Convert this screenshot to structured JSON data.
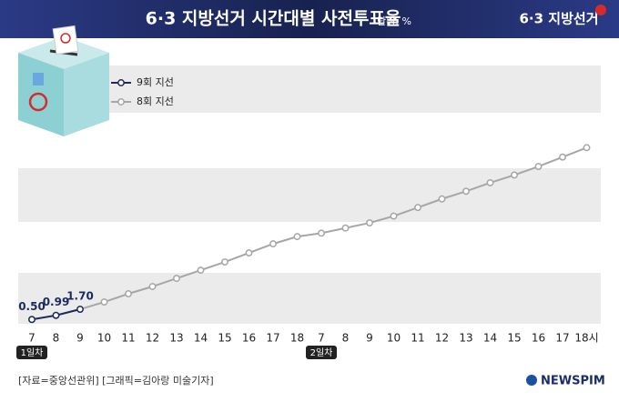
{
  "header": {
    "logo": "6·3 지방선거"
  },
  "chart_data": {
    "type": "line",
    "title": "6·3 지방선거 시간대별 사전투표율",
    "unit": "단위: %",
    "categories": [
      "7",
      "8",
      "9",
      "10",
      "11",
      "12",
      "13",
      "14",
      "15",
      "16",
      "17",
      "18",
      "7",
      "8",
      "9",
      "10",
      "11",
      "12",
      "13",
      "14",
      "15",
      "16",
      "17",
      "18시"
    ],
    "annotations": [
      "1일차",
      "2일차"
    ],
    "series": [
      {
        "name": "9회 지선",
        "color": "#1f2a5c",
        "values": [
          0.5,
          0.99,
          1.7,
          null,
          null,
          null,
          null,
          null,
          null,
          null,
          null,
          null,
          null,
          null,
          null,
          null,
          null,
          null,
          null,
          null,
          null,
          null,
          null,
          null
        ],
        "value_labels": [
          "0.50",
          "0.99",
          "1.70",
          null,
          null,
          null,
          null,
          null,
          null,
          null,
          null,
          null,
          null,
          null,
          null,
          null,
          null,
          null,
          null,
          null,
          null,
          null,
          null,
          null
        ]
      },
      {
        "name": "8회 지선",
        "color": "#a6a6a6",
        "values": [
          0.53,
          0.96,
          1.7,
          2.55,
          3.51,
          4.36,
          5.31,
          6.27,
          7.23,
          8.29,
          9.35,
          10.2,
          10.6,
          11.2,
          11.8,
          12.6,
          13.6,
          14.6,
          15.5,
          16.5,
          17.4,
          18.4,
          19.5,
          20.6
        ]
      }
    ],
    "ylim": [
      0,
      30
    ]
  },
  "footer": {
    "source": "[자료=중앙선관위] [그래픽=김아랑 미술기자]",
    "brand": "NEWSPIM"
  }
}
